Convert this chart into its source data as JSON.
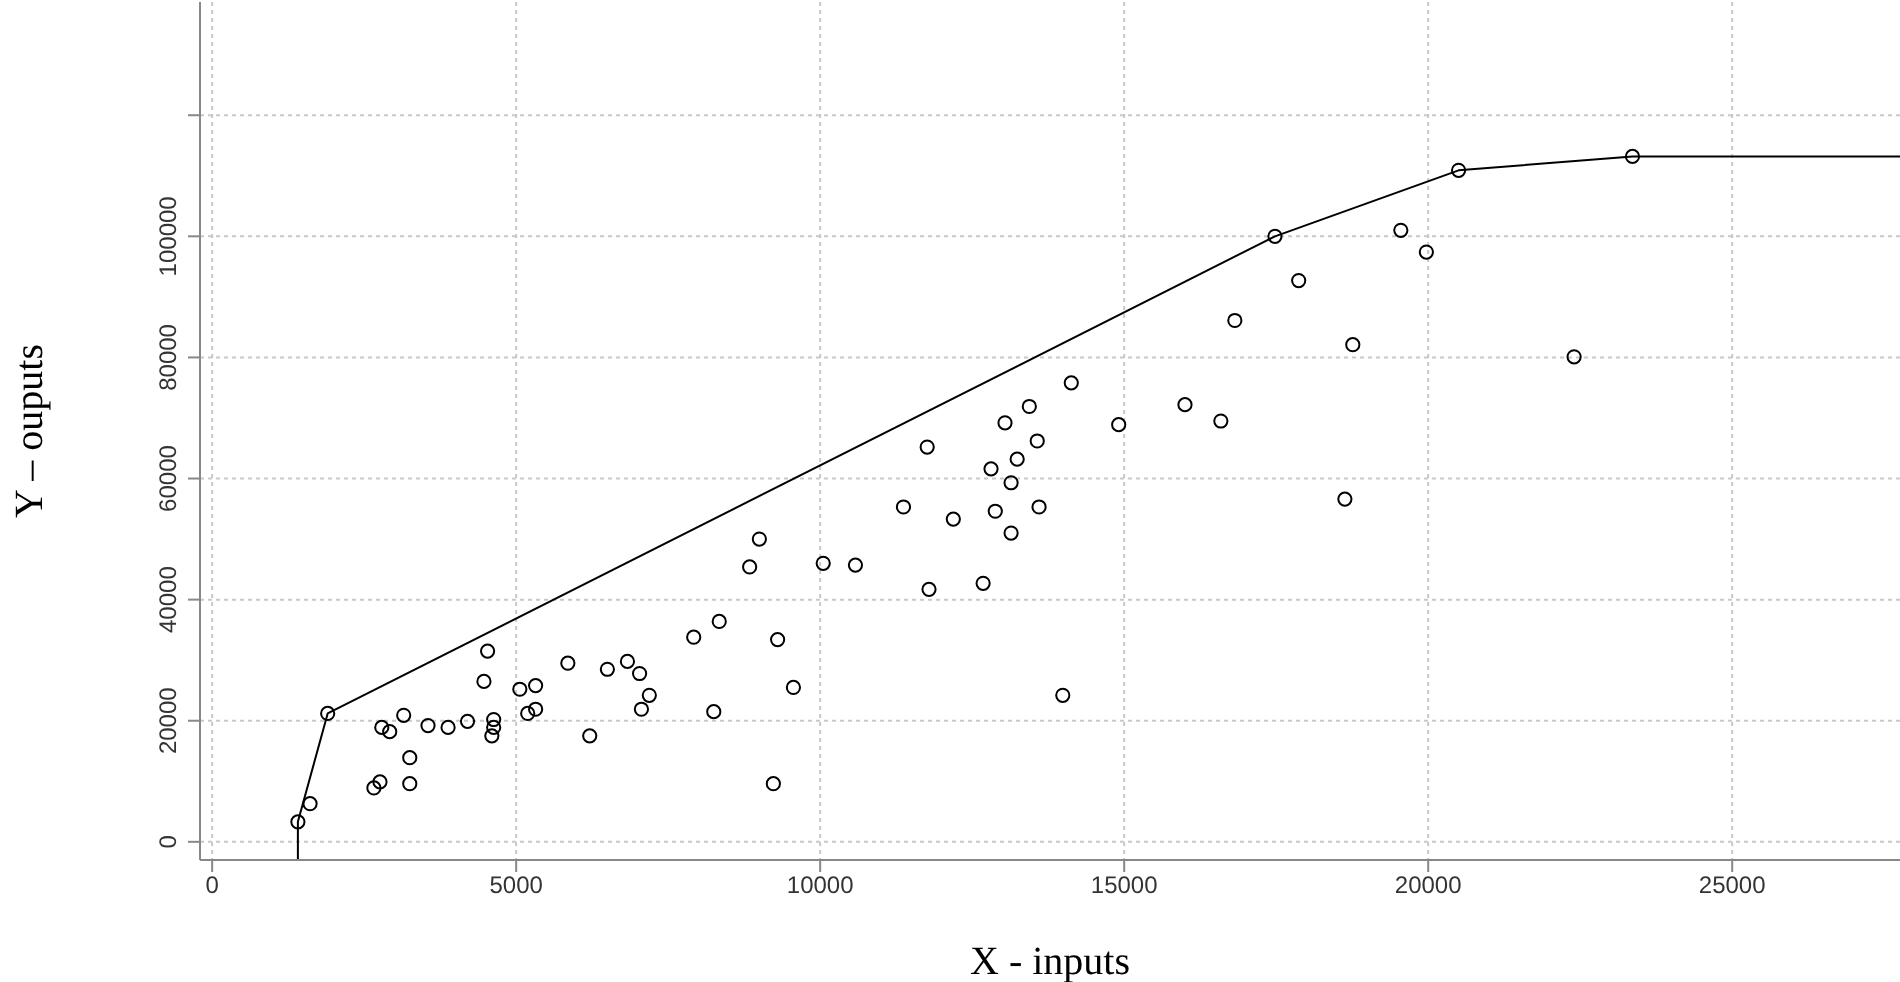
{
  "chart_data": {
    "type": "scatter",
    "xlabel": "X - inputs",
    "ylabel": "Y – ouputs",
    "xlim": [
      -200,
      27760
    ],
    "xticks": [
      0,
      5000,
      10000,
      15000,
      20000,
      25000
    ],
    "ylim": [
      -3000,
      138700
    ],
    "yticks": [
      0,
      20000,
      40000,
      60000,
      80000,
      100000,
      {
        "value": 120000,
        "label": null
      }
    ],
    "grid": true,
    "series": [
      {
        "color": "#000000",
        "marker": "circle",
        "x": [
          1410,
          1610,
          1900,
          2660,
          2760,
          2790,
          2920,
          3150,
          3250,
          3250,
          3550,
          3880,
          4200,
          4470,
          4530,
          4600,
          4630,
          4630,
          5060,
          5190,
          5320,
          5320,
          5850,
          6210,
          6500,
          6830,
          7030,
          7060,
          7190,
          7920,
          8250,
          8340,
          8840,
          9000,
          9230,
          9300,
          9560,
          10050,
          10580,
          11370,
          11760,
          11790,
          12190,
          12680,
          12810,
          12880,
          13040,
          13140,
          13140,
          13240,
          13440,
          13570,
          13600,
          13990,
          14130,
          14910,
          16000,
          16590,
          16820,
          17480,
          17870,
          18630,
          18760,
          19550,
          19970,
          20500,
          22400,
          23360
        ],
        "values": [
          3300,
          6300,
          21200,
          8900,
          9900,
          18900,
          18200,
          20900,
          9600,
          13900,
          19200,
          18900,
          19900,
          26500,
          31500,
          17500,
          20200,
          18900,
          25200,
          21200,
          21900,
          25800,
          29500,
          17500,
          28500,
          29800,
          27800,
          21900,
          24200,
          33800,
          21500,
          36400,
          45400,
          50000,
          9600,
          33400,
          25500,
          46000,
          45700,
          55300,
          65200,
          41700,
          53300,
          42700,
          61600,
          54600,
          69200,
          59300,
          51000,
          63200,
          71900,
          66200,
          55300,
          24200,
          75800,
          68900,
          72200,
          69500,
          86100,
          100000,
          92700,
          56600,
          82100,
          101000,
          97400,
          110900,
          80100,
          113200
        ]
      },
      {
        "type": "line",
        "color": "#000000",
        "marker": "none",
        "line_style": "solid",
        "x": [
          1410,
          1410,
          1900,
          17480,
          20500,
          23360,
          27760
        ],
        "values": [
          -3000,
          3300,
          21200,
          100000,
          110900,
          113200,
          113200
        ]
      }
    ]
  }
}
